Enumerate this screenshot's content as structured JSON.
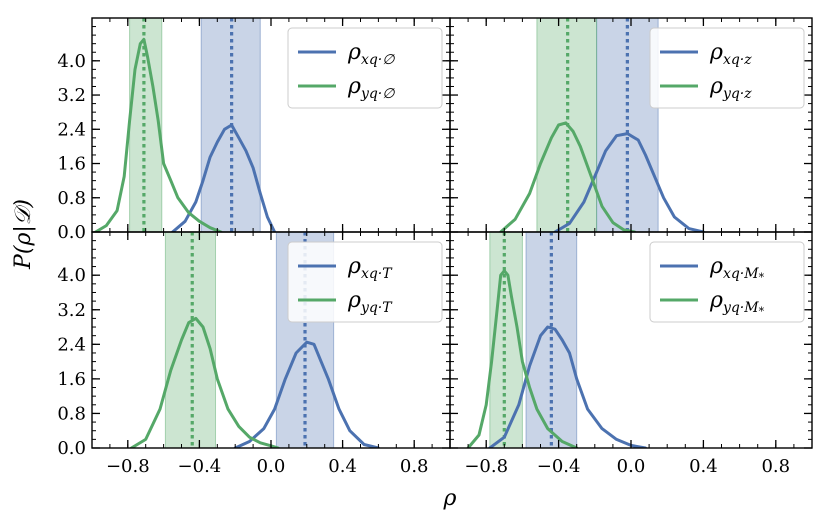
{
  "figure": {
    "ylabel": "P(ρ|𝒟)",
    "xlabel": "ρ"
  },
  "colors": {
    "blue": "#4C72B0",
    "green": "#55A868"
  },
  "chart_data": [
    {
      "type": "line",
      "panel": "top-left",
      "xlim": [
        -1.0,
        1.0
      ],
      "ylim": [
        0.0,
        5.0
      ],
      "xticks": [
        -0.8,
        -0.4,
        0.0,
        0.4,
        0.8
      ],
      "yticks": [
        0.0,
        0.8,
        1.6,
        2.4,
        3.2,
        4.0
      ],
      "ytick_labels": [
        "0.0",
        "0.8",
        "1.6",
        "2.4",
        "3.2",
        "4.0"
      ],
      "show_xtick_labels": false,
      "show_ytick_labels": true,
      "legend_position": "top-right",
      "series": [
        {
          "name": "ρxq·∅",
          "base": "ρ",
          "sub": "xq·∅",
          "color": "blue",
          "median": -0.22,
          "band": [
            -0.39,
            -0.06
          ],
          "x": [
            -0.55,
            -0.48,
            -0.42,
            -0.38,
            -0.34,
            -0.3,
            -0.26,
            -0.22,
            -0.18,
            -0.14,
            -0.1,
            -0.06,
            -0.02,
            0.02
          ],
          "y": [
            0.0,
            0.25,
            0.7,
            1.2,
            1.75,
            2.1,
            2.4,
            2.5,
            2.2,
            1.9,
            1.5,
            0.9,
            0.35,
            0.0
          ]
        },
        {
          "name": "ρyq·∅",
          "base": "ρ",
          "sub": "yq·∅",
          "color": "green",
          "median": -0.71,
          "band": [
            -0.79,
            -0.61
          ],
          "x": [
            -0.98,
            -0.92,
            -0.86,
            -0.82,
            -0.79,
            -0.76,
            -0.73,
            -0.71,
            -0.69,
            -0.66,
            -0.63,
            -0.6,
            -0.56,
            -0.52,
            -0.46,
            -0.4,
            -0.34,
            -0.28
          ],
          "y": [
            0.0,
            0.15,
            0.5,
            1.3,
            2.6,
            3.8,
            4.4,
            4.5,
            4.1,
            3.4,
            2.6,
            1.6,
            1.2,
            0.8,
            0.45,
            0.25,
            0.1,
            0.0
          ]
        }
      ]
    },
    {
      "type": "line",
      "panel": "top-right",
      "xlim": [
        -1.0,
        1.0
      ],
      "ylim": [
        0.0,
        5.0
      ],
      "xticks": [
        -0.8,
        -0.4,
        0.0,
        0.4,
        0.8
      ],
      "yticks": [
        0.0,
        0.8,
        1.6,
        2.4,
        3.2,
        4.0
      ],
      "ytick_labels": [
        "0.0",
        "0.8",
        "1.6",
        "2.4",
        "3.2",
        "4.0"
      ],
      "show_xtick_labels": false,
      "show_ytick_labels": false,
      "legend_position": "top-right",
      "series": [
        {
          "name": "ρxq·z",
          "base": "ρ",
          "sub": "xq·z",
          "color": "blue",
          "median": -0.02,
          "band": [
            -0.19,
            0.15
          ],
          "x": [
            -0.42,
            -0.34,
            -0.26,
            -0.2,
            -0.14,
            -0.08,
            -0.02,
            0.04,
            0.08,
            0.12,
            0.18,
            0.24,
            0.32,
            0.4
          ],
          "y": [
            0.0,
            0.2,
            0.7,
            1.3,
            1.9,
            2.25,
            2.3,
            2.15,
            1.8,
            1.4,
            0.8,
            0.35,
            0.08,
            0.0
          ]
        },
        {
          "name": "ρyq·z",
          "base": "ρ",
          "sub": "yq·z",
          "color": "green",
          "median": -0.35,
          "band": [
            -0.52,
            -0.19
          ],
          "x": [
            -0.72,
            -0.64,
            -0.56,
            -0.5,
            -0.44,
            -0.4,
            -0.36,
            -0.32,
            -0.28,
            -0.22,
            -0.16,
            -0.1,
            -0.04,
            0.02
          ],
          "y": [
            0.0,
            0.3,
            0.9,
            1.6,
            2.2,
            2.5,
            2.55,
            2.35,
            2.0,
            1.3,
            0.6,
            0.22,
            0.05,
            0.0
          ]
        }
      ]
    },
    {
      "type": "line",
      "panel": "bottom-left",
      "xlim": [
        -1.0,
        1.0
      ],
      "ylim": [
        0.0,
        5.0
      ],
      "xticks": [
        -0.8,
        -0.4,
        0.0,
        0.4,
        0.8
      ],
      "xtick_labels": [
        "−0.8",
        "−0.4",
        "0.0",
        "0.4",
        "0.8"
      ],
      "yticks": [
        0.0,
        0.8,
        1.6,
        2.4,
        3.2,
        4.0
      ],
      "ytick_labels": [
        "0.0",
        "0.8",
        "1.6",
        "2.4",
        "3.2",
        "4.0"
      ],
      "show_xtick_labels": true,
      "show_ytick_labels": true,
      "legend_position": "top-right",
      "series": [
        {
          "name": "ρxq·T",
          "base": "ρ",
          "sub": "xq·T",
          "color": "blue",
          "median": 0.19,
          "band": [
            0.03,
            0.35
          ],
          "x": [
            -0.2,
            -0.12,
            -0.04,
            0.02,
            0.08,
            0.14,
            0.2,
            0.24,
            0.28,
            0.32,
            0.38,
            0.44,
            0.52,
            0.6
          ],
          "y": [
            0.0,
            0.15,
            0.45,
            0.9,
            1.6,
            2.2,
            2.45,
            2.4,
            2.0,
            1.6,
            0.9,
            0.4,
            0.08,
            0.0
          ]
        },
        {
          "name": "ρyq·T",
          "base": "ρ",
          "sub": "yq·T",
          "color": "green",
          "median": -0.44,
          "band": [
            -0.59,
            -0.31
          ],
          "x": [
            -0.78,
            -0.7,
            -0.62,
            -0.56,
            -0.5,
            -0.46,
            -0.42,
            -0.38,
            -0.34,
            -0.3,
            -0.24,
            -0.18,
            -0.12,
            -0.06,
            0.0,
            0.04
          ],
          "y": [
            0.0,
            0.2,
            0.9,
            1.8,
            2.5,
            2.9,
            3.0,
            2.8,
            2.3,
            1.6,
            0.9,
            0.5,
            0.25,
            0.12,
            0.05,
            0.0
          ]
        }
      ]
    },
    {
      "type": "line",
      "panel": "bottom-right",
      "xlim": [
        -1.0,
        1.0
      ],
      "ylim": [
        0.0,
        5.0
      ],
      "xticks": [
        -0.8,
        -0.4,
        0.0,
        0.4,
        0.8
      ],
      "xtick_labels": [
        "−0.8",
        "−0.4",
        "0.0",
        "0.4",
        "0.8"
      ],
      "yticks": [
        0.0,
        0.8,
        1.6,
        2.4,
        3.2,
        4.0
      ],
      "ytick_labels": [
        "0.0",
        "0.8",
        "1.6",
        "2.4",
        "3.2",
        "4.0"
      ],
      "show_xtick_labels": true,
      "show_ytick_labels": false,
      "legend_position": "top-right",
      "series": [
        {
          "name": "ρxq·M*",
          "base": "ρ",
          "sub": "xq·M",
          "sub_star": "*",
          "color": "blue",
          "median": -0.44,
          "band": [
            -0.58,
            -0.3
          ],
          "x": [
            -0.78,
            -0.7,
            -0.62,
            -0.56,
            -0.5,
            -0.46,
            -0.42,
            -0.38,
            -0.34,
            -0.3,
            -0.24,
            -0.16,
            -0.08,
            0.0,
            0.08
          ],
          "y": [
            0.0,
            0.25,
            1.0,
            1.9,
            2.6,
            2.8,
            2.75,
            2.5,
            2.2,
            1.6,
            0.9,
            0.45,
            0.2,
            0.06,
            0.0
          ]
        },
        {
          "name": "ρyq·M*",
          "base": "ρ",
          "sub": "yq·M",
          "sub_star": "*",
          "color": "green",
          "median": -0.7,
          "band": [
            -0.78,
            -0.6
          ],
          "x": [
            -0.9,
            -0.84,
            -0.8,
            -0.77,
            -0.74,
            -0.72,
            -0.7,
            -0.68,
            -0.66,
            -0.63,
            -0.6,
            -0.56,
            -0.52,
            -0.46,
            -0.38,
            -0.3
          ],
          "y": [
            0.0,
            0.3,
            1.0,
            2.0,
            3.2,
            4.0,
            4.1,
            4.0,
            3.5,
            2.8,
            2.0,
            1.4,
            0.9,
            0.45,
            0.15,
            0.0
          ]
        }
      ]
    }
  ]
}
